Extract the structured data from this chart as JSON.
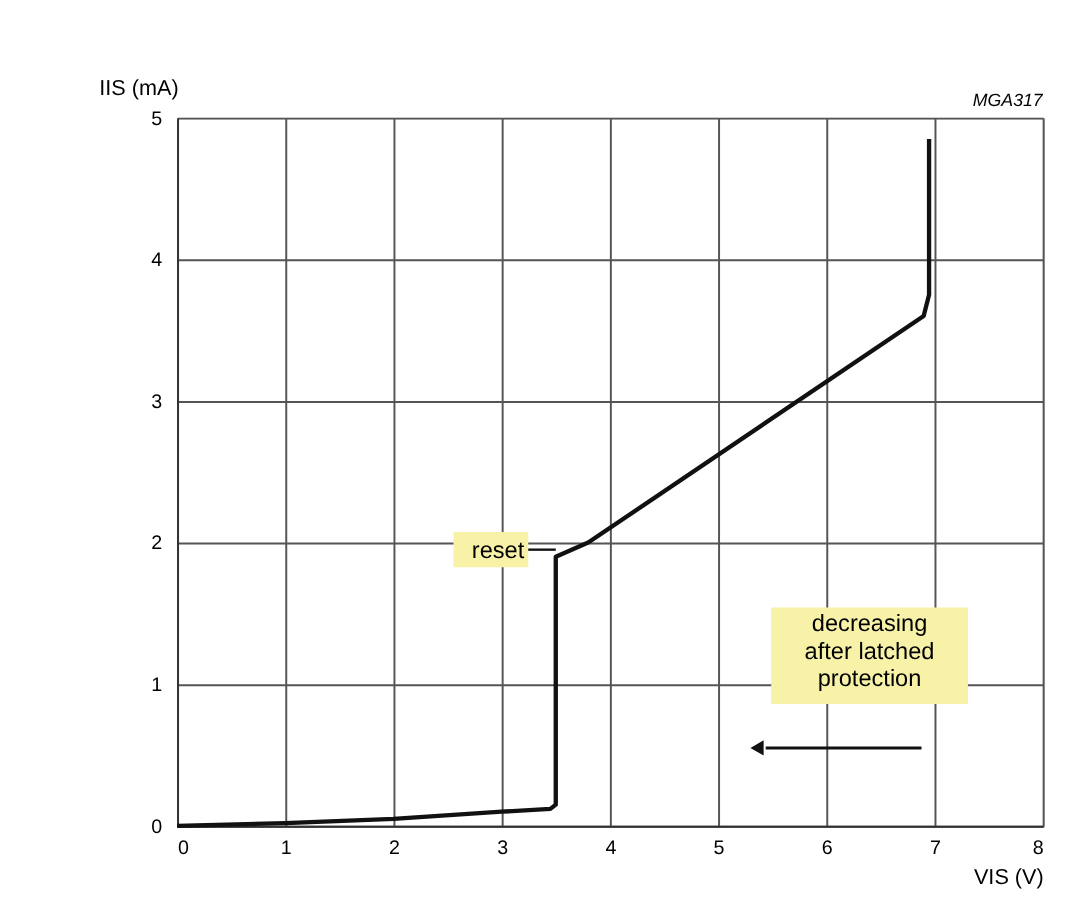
{
  "chart_data": {
    "type": "line",
    "xlabel": "VIS (V)",
    "ylabel": "IIS (mA)",
    "x": [
      0,
      1,
      2,
      3,
      3.45,
      3.5,
      3.5,
      3.8,
      6.9,
      6.95,
      6.95
    ],
    "series": [
      {
        "color": "#111111",
        "values": [
          0,
          0.02,
          0.05,
          0.1,
          0.12,
          0.15,
          1.9,
          2.0,
          3.6,
          3.75,
          4.85
        ]
      }
    ],
    "xlim": [
      0,
      8
    ],
    "ylim": [
      0,
      5
    ],
    "xticks": [
      0,
      1,
      2,
      3,
      4,
      5,
      6,
      7,
      8
    ],
    "yticks": [
      0,
      1,
      2,
      3,
      4,
      5
    ],
    "grid": true,
    "marker": "none",
    "annotations": [
      {
        "text": "reset",
        "x": 3.5,
        "y": 1.95
      },
      "decreasing\nafter latched\nprotection",
      "MGA317"
    ]
  }
}
